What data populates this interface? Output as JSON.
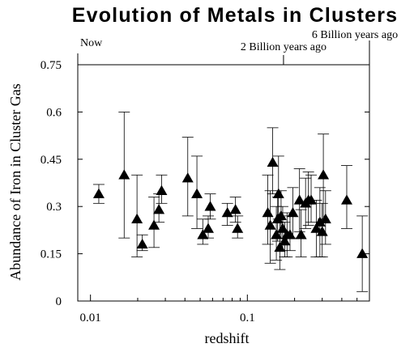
{
  "chart_data": {
    "type": "scatter",
    "title": "Evolution of Metals in Clusters",
    "xlabel": "redshift",
    "ylabel": "Abundance of Iron in Cluster Gas",
    "x_scale": "log",
    "xlim": [
      0.0083,
      0.6
    ],
    "ylim": [
      0,
      0.75
    ],
    "x_ticks": [
      {
        "value": 0.01,
        "label": "0.01"
      },
      {
        "value": 0.1,
        "label": "0.1"
      }
    ],
    "y_ticks": [
      {
        "value": 0,
        "label": "0"
      },
      {
        "value": 0.15,
        "label": "0.15"
      },
      {
        "value": 0.3,
        "label": "0.3"
      },
      {
        "value": 0.45,
        "label": "0.45"
      },
      {
        "value": 0.6,
        "label": "0.6"
      },
      {
        "value": 0.75,
        "label": "0.75"
      }
    ],
    "top_axis_labels": [
      {
        "value": 0.0083,
        "label": "Now"
      },
      {
        "value": 0.17,
        "label": "2 Billion years ago"
      },
      {
        "value": 0.6,
        "label": "6 Billion years ago"
      }
    ],
    "grid": false,
    "points": [
      {
        "x": 0.0113,
        "y": 0.34,
        "lo": 0.31,
        "hi": 0.37
      },
      {
        "x": 0.0164,
        "y": 0.4,
        "lo": 0.2,
        "hi": 0.6
      },
      {
        "x": 0.0198,
        "y": 0.26,
        "lo": 0.14,
        "hi": 0.4
      },
      {
        "x": 0.0214,
        "y": 0.18,
        "lo": 0.16,
        "hi": 0.21
      },
      {
        "x": 0.0254,
        "y": 0.24,
        "lo": 0.17,
        "hi": 0.33
      },
      {
        "x": 0.0273,
        "y": 0.29,
        "lo": 0.25,
        "hi": 0.34
      },
      {
        "x": 0.0284,
        "y": 0.35,
        "lo": 0.31,
        "hi": 0.4
      },
      {
        "x": 0.0417,
        "y": 0.39,
        "lo": 0.27,
        "hi": 0.52
      },
      {
        "x": 0.0477,
        "y": 0.34,
        "lo": 0.23,
        "hi": 0.46
      },
      {
        "x": 0.052,
        "y": 0.21,
        "lo": 0.18,
        "hi": 0.26
      },
      {
        "x": 0.0563,
        "y": 0.23,
        "lo": 0.2,
        "hi": 0.27
      },
      {
        "x": 0.058,
        "y": 0.3,
        "lo": 0.26,
        "hi": 0.34
      },
      {
        "x": 0.0746,
        "y": 0.28,
        "lo": 0.24,
        "hi": 0.31
      },
      {
        "x": 0.084,
        "y": 0.29,
        "lo": 0.25,
        "hi": 0.33
      },
      {
        "x": 0.0866,
        "y": 0.23,
        "lo": 0.2,
        "hi": 0.27
      },
      {
        "x": 0.135,
        "y": 0.28,
        "lo": 0.18,
        "hi": 0.4
      },
      {
        "x": 0.14,
        "y": 0.24,
        "lo": 0.12,
        "hi": 0.35
      },
      {
        "x": 0.145,
        "y": 0.44,
        "lo": 0.34,
        "hi": 0.55
      },
      {
        "x": 0.153,
        "y": 0.21,
        "lo": 0.13,
        "hi": 0.3
      },
      {
        "x": 0.156,
        "y": 0.26,
        "lo": 0.19,
        "hi": 0.33
      },
      {
        "x": 0.158,
        "y": 0.34,
        "lo": 0.26,
        "hi": 0.46
      },
      {
        "x": 0.161,
        "y": 0.17,
        "lo": 0.1,
        "hi": 0.25
      },
      {
        "x": 0.164,
        "y": 0.27,
        "lo": 0.2,
        "hi": 0.35
      },
      {
        "x": 0.168,
        "y": 0.23,
        "lo": 0.16,
        "hi": 0.3
      },
      {
        "x": 0.173,
        "y": 0.19,
        "lo": 0.14,
        "hi": 0.25
      },
      {
        "x": 0.179,
        "y": 0.21,
        "lo": 0.14,
        "hi": 0.28
      },
      {
        "x": 0.187,
        "y": 0.21,
        "lo": 0.16,
        "hi": 0.27
      },
      {
        "x": 0.195,
        "y": 0.28,
        "lo": 0.2,
        "hi": 0.36
      },
      {
        "x": 0.215,
        "y": 0.32,
        "lo": 0.22,
        "hi": 0.42
      },
      {
        "x": 0.22,
        "y": 0.21,
        "lo": 0.14,
        "hi": 0.29
      },
      {
        "x": 0.235,
        "y": 0.31,
        "lo": 0.23,
        "hi": 0.39
      },
      {
        "x": 0.245,
        "y": 0.32,
        "lo": 0.24,
        "hi": 0.41
      },
      {
        "x": 0.255,
        "y": 0.32,
        "lo": 0.25,
        "hi": 0.4
      },
      {
        "x": 0.275,
        "y": 0.23,
        "lo": 0.14,
        "hi": 0.32
      },
      {
        "x": 0.29,
        "y": 0.25,
        "lo": 0.14,
        "hi": 0.36
      },
      {
        "x": 0.3,
        "y": 0.22,
        "lo": 0.14,
        "hi": 0.31
      },
      {
        "x": 0.305,
        "y": 0.4,
        "lo": 0.26,
        "hi": 0.53
      },
      {
        "x": 0.315,
        "y": 0.26,
        "lo": 0.18,
        "hi": 0.35
      },
      {
        "x": 0.43,
        "y": 0.32,
        "lo": 0.23,
        "hi": 0.43
      },
      {
        "x": 0.54,
        "y": 0.15,
        "lo": 0.03,
        "hi": 0.27
      }
    ]
  }
}
